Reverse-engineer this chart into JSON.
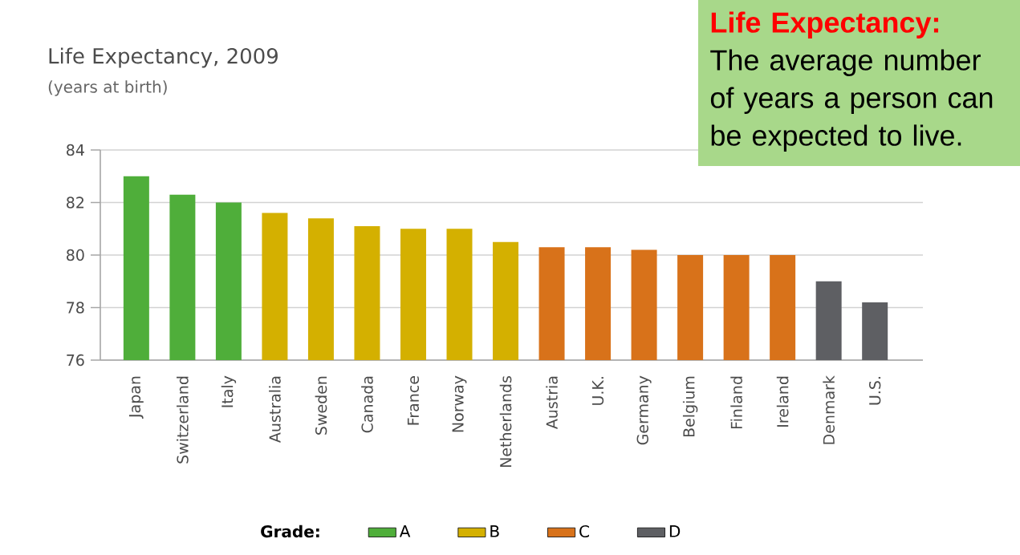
{
  "chart_data": {
    "type": "bar",
    "title": "Life Expectancy, 2009",
    "subtitle": "(years at birth)",
    "categories": [
      "Japan",
      "Switzerland",
      "Italy",
      "Australia",
      "Sweden",
      "Canada",
      "France",
      "Norway",
      "Netherlands",
      "Austria",
      "U.K.",
      "Germany",
      "Belgium",
      "Finland",
      "Ireland",
      "Denmark",
      "U.S."
    ],
    "series": [
      {
        "name": "A",
        "color": "#4fae3a",
        "values": [
          83.0,
          82.3,
          82.0,
          null,
          null,
          null,
          null,
          null,
          null,
          null,
          null,
          null,
          null,
          null,
          null,
          null,
          null
        ]
      },
      {
        "name": "B",
        "color": "#d4b000",
        "values": [
          null,
          null,
          null,
          81.6,
          81.4,
          81.1,
          81.0,
          81.0,
          80.5,
          null,
          null,
          null,
          null,
          null,
          null,
          null,
          null
        ]
      },
      {
        "name": "C",
        "color": "#d8721a",
        "values": [
          null,
          null,
          null,
          null,
          null,
          null,
          null,
          null,
          null,
          80.3,
          80.3,
          80.2,
          80.0,
          80.0,
          80.0,
          null,
          null
        ]
      },
      {
        "name": "D",
        "color": "#5e5f63",
        "values": [
          null,
          null,
          null,
          null,
          null,
          null,
          null,
          null,
          null,
          null,
          null,
          null,
          null,
          null,
          null,
          79.0,
          78.2
        ]
      }
    ],
    "ylim": [
      76,
      84
    ],
    "yticks": [
      76,
      78,
      80,
      82,
      84
    ],
    "grid": "y",
    "legend": "bottom",
    "legend_title": "Grade:",
    "annotations": [
      "Life Expectancy:",
      "The average number of years a person can be expected to live."
    ]
  }
}
